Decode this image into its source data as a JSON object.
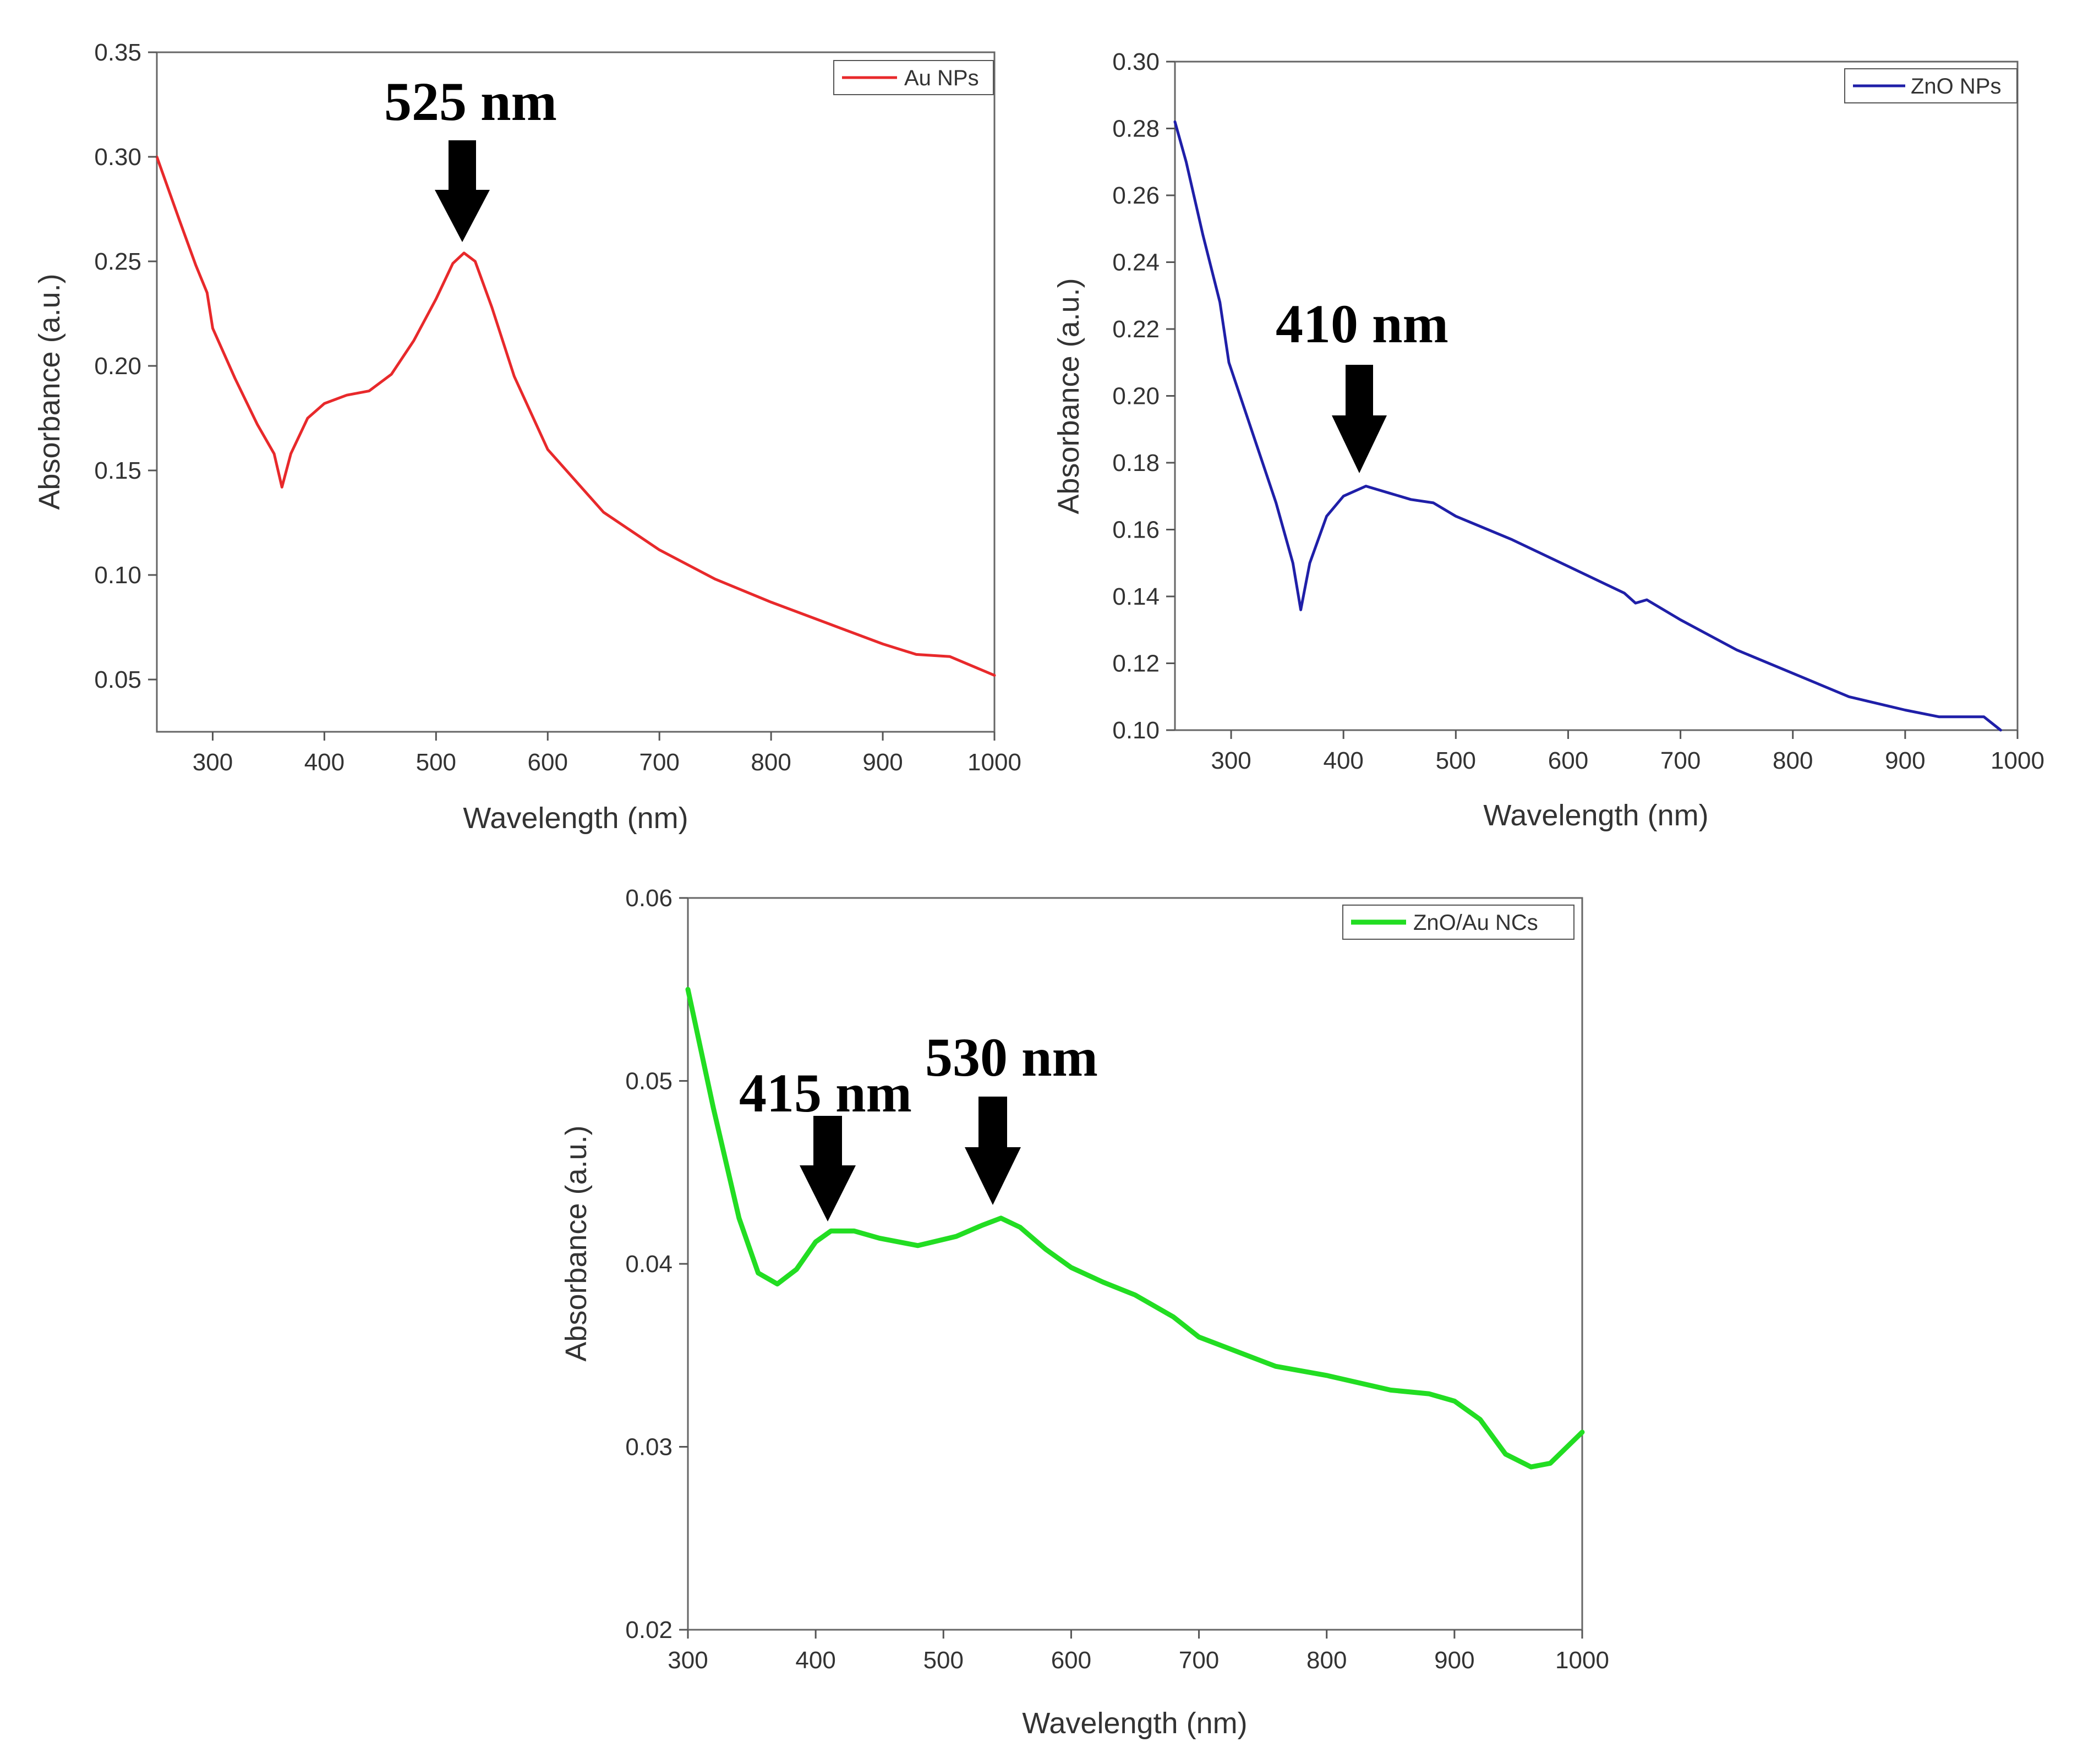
{
  "chart_data": [
    {
      "type": "line",
      "title": "",
      "xlabel": "Wavelength (nm)",
      "ylabel": "Absorbance (a.u.)",
      "xlim": [
        250,
        1000
      ],
      "ylim": [
        0.025,
        0.35
      ],
      "xticks": [
        300,
        400,
        500,
        600,
        700,
        800,
        900,
        1000
      ],
      "yticks": [
        0.05,
        0.1,
        0.15,
        0.2,
        0.25,
        0.3,
        0.35
      ],
      "ytick_labels": [
        "0.05",
        "0.10",
        "0.15",
        "0.20",
        "0.25",
        "0.30",
        "0.35"
      ],
      "legend_position": "top-right",
      "series": [
        {
          "name": "Au NPs",
          "color": "#e8292b",
          "x": [
            250,
            270,
            285,
            295,
            300,
            320,
            340,
            355,
            362,
            370,
            385,
            400,
            420,
            440,
            460,
            480,
            500,
            515,
            525,
            535,
            550,
            570,
            600,
            650,
            700,
            750,
            800,
            850,
            900,
            930,
            960,
            1000
          ],
          "y": [
            0.3,
            0.27,
            0.248,
            0.235,
            0.218,
            0.194,
            0.172,
            0.158,
            0.142,
            0.158,
            0.175,
            0.182,
            0.186,
            0.188,
            0.196,
            0.212,
            0.232,
            0.249,
            0.254,
            0.25,
            0.228,
            0.195,
            0.16,
            0.13,
            0.112,
            0.098,
            0.087,
            0.077,
            0.067,
            0.062,
            0.061,
            0.052
          ]
        }
      ],
      "annotations": [
        {
          "text": "525 nm",
          "x": 525,
          "y": 0.254
        }
      ]
    },
    {
      "type": "line",
      "title": "",
      "xlabel": "Wavelength (nm)",
      "ylabel": "Absorbance (a.u.)",
      "xlim": [
        250,
        1000
      ],
      "ylim": [
        0.1,
        0.3
      ],
      "xticks": [
        300,
        400,
        500,
        600,
        700,
        800,
        900,
        1000
      ],
      "yticks": [
        0.1,
        0.12,
        0.14,
        0.16,
        0.18,
        0.2,
        0.22,
        0.24,
        0.26,
        0.28,
        0.3
      ],
      "ytick_labels": [
        "0.10",
        "0.12",
        "0.14",
        "0.16",
        "0.18",
        "0.20",
        "0.22",
        "0.24",
        "0.26",
        "0.28",
        "0.30"
      ],
      "legend_position": "top-right",
      "series": [
        {
          "name": "ZnO NPs",
          "color": "#1f1fa8",
          "x": [
            250,
            260,
            275,
            290,
            298,
            300,
            320,
            340,
            355,
            362,
            370,
            385,
            400,
            420,
            440,
            460,
            480,
            500,
            550,
            600,
            650,
            660,
            670,
            700,
            750,
            800,
            850,
            900,
            930,
            960,
            970,
            985
          ],
          "y": [
            0.282,
            0.27,
            0.248,
            0.228,
            0.21,
            0.208,
            0.188,
            0.168,
            0.15,
            0.136,
            0.15,
            0.164,
            0.17,
            0.173,
            0.171,
            0.169,
            0.168,
            0.164,
            0.157,
            0.149,
            0.141,
            0.138,
            0.139,
            0.133,
            0.124,
            0.117,
            0.11,
            0.106,
            0.104,
            0.104,
            0.104,
            0.1
          ]
        }
      ],
      "annotations": [
        {
          "text": "410 nm",
          "x": 415,
          "y": 0.173
        }
      ]
    },
    {
      "type": "line",
      "title": "",
      "xlabel": "Wavelength (nm)",
      "ylabel": "Absorbance (a.u.)",
      "xlim": [
        300,
        1000
      ],
      "ylim": [
        0.02,
        0.06
      ],
      "xticks": [
        300,
        400,
        500,
        600,
        700,
        800,
        900,
        1000
      ],
      "yticks": [
        0.02,
        0.03,
        0.04,
        0.05,
        0.06
      ],
      "ytick_labels": [
        "0.02",
        "0.03",
        "0.04",
        "0.05",
        "0.06"
      ],
      "legend_position": "top-right",
      "series": [
        {
          "name": "ZnO/Au NCs",
          "color": "#22dd22",
          "x": [
            300,
            320,
            340,
            355,
            370,
            385,
            400,
            412,
            430,
            450,
            480,
            510,
            530,
            545,
            560,
            580,
            600,
            625,
            650,
            680,
            700,
            730,
            760,
            800,
            850,
            880,
            900,
            920,
            940,
            960,
            975,
            1000
          ],
          "y": [
            0.055,
            0.0485,
            0.0425,
            0.0395,
            0.0389,
            0.0397,
            0.0412,
            0.0418,
            0.0418,
            0.0414,
            0.041,
            0.0415,
            0.0421,
            0.0425,
            0.042,
            0.0408,
            0.0398,
            0.039,
            0.0383,
            0.0371,
            0.036,
            0.0352,
            0.0344,
            0.0339,
            0.0331,
            0.0329,
            0.0325,
            0.0315,
            0.0296,
            0.0289,
            0.0291,
            0.0308
          ]
        }
      ],
      "annotations": [
        {
          "text": "415 nm",
          "x": 415,
          "y": 0.0418
        },
        {
          "text": "530 nm",
          "x": 540,
          "y": 0.0425
        }
      ]
    }
  ]
}
